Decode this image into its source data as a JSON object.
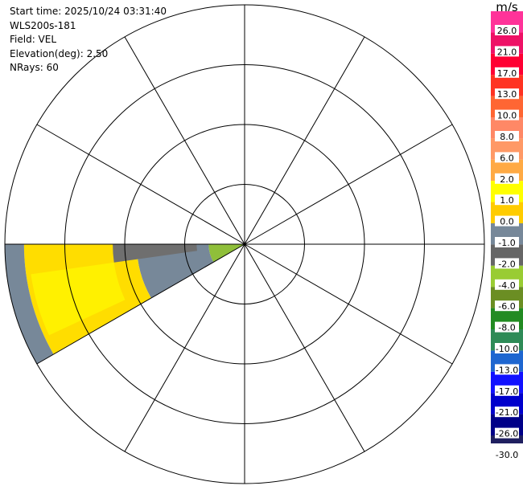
{
  "info": {
    "start_time": "Start time: 2025/10/24 03:31:40",
    "instrument": "WLS200s-181",
    "field": "Field: VEL",
    "elevation": "Elevation(deg): 2.50",
    "nrays": "NRays: 60"
  },
  "colorbar": {
    "unit": "m/s",
    "ticks": [
      "26.0",
      "21.0",
      "17.0",
      "13.0",
      "10.0",
      "8.0",
      "6.0",
      "2.0",
      "1.0",
      "0.0",
      "-1.0",
      "-2.0",
      "-4.0",
      "-6.0",
      "-8.0",
      "-10.0",
      "-13.0",
      "-17.0",
      "-21.0",
      "-26.0",
      "-30.0"
    ],
    "colors": [
      "#ff3399",
      "#ee1166",
      "#ff0033",
      "#ff3322",
      "#ff6633",
      "#ff8866",
      "#ff9966",
      "#ffaa44",
      "#ffff00",
      "#ffcc00",
      "#778899",
      "#666666",
      "#99cc33",
      "#6b8e23",
      "#228b22",
      "#2e8b57",
      "#1e66d0",
      "#1111ff",
      "#0000cc",
      "#000088",
      "#202060"
    ]
  },
  "chart_data": {
    "type": "ppi",
    "range_rings": 4,
    "radial_lines_deg": [
      0,
      30,
      60,
      90,
      120,
      150,
      180,
      210,
      240,
      270,
      300,
      330
    ],
    "sector_deg": [
      240,
      270
    ],
    "velocity_bands": [
      {
        "from_frac": 0.0,
        "to_frac": 0.15,
        "value": -2.0
      },
      {
        "from_frac": 0.15,
        "to_frac": 0.45,
        "value": 0.0
      },
      {
        "from_frac": 0.45,
        "to_frac": 0.92,
        "value": 1.5
      },
      {
        "from_frac": 0.92,
        "to_frac": 1.0,
        "value": 0.0
      }
    ]
  }
}
